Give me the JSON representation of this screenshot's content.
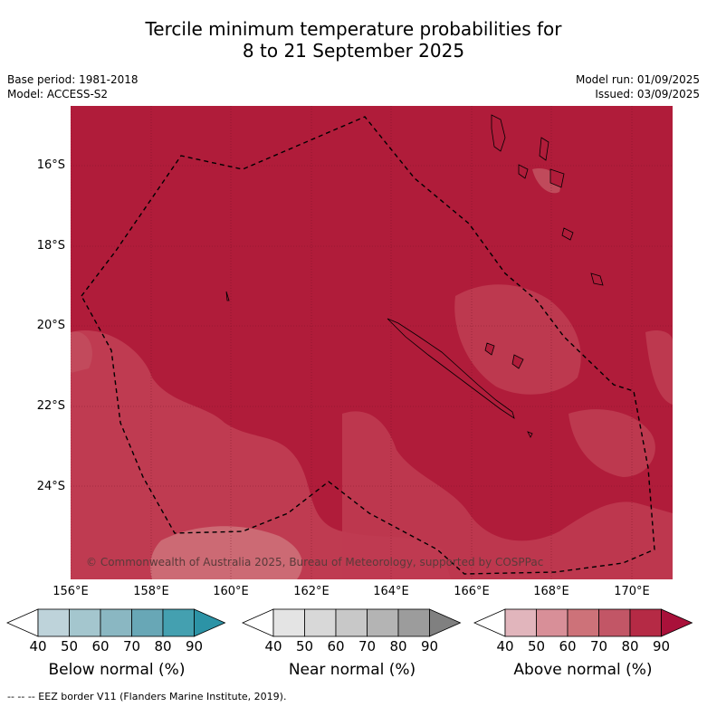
{
  "title": {
    "line1": "Tercile minimum temperature probabilities for",
    "line2": "8 to 21 September 2025"
  },
  "meta": {
    "base_period": "Base period: 1981-2018",
    "model": "Model: ACCESS-S2",
    "model_run": "Model run: 01/09/2025",
    "issued": "Issued: 03/09/2025"
  },
  "map": {
    "lat_labels": [
      "16°S",
      "18°S",
      "20°S",
      "22°S",
      "24°S"
    ],
    "lon_labels": [
      "156°E",
      "158°E",
      "160°E",
      "162°E",
      "164°E",
      "166°E",
      "168°E",
      "170°E"
    ],
    "credit": "© Commonwealth of Australia 2025, Bureau of Meteorology, supported by COSPPac",
    "background_color": "#b01c3a"
  },
  "colorbars": [
    {
      "label": "Below normal (%)",
      "ticks": [
        "40",
        "50",
        "60",
        "70",
        "80",
        "90"
      ],
      "colors": [
        "#ffffff",
        "#bed3da",
        "#a4c6ce",
        "#8ab7c2",
        "#68a7b6",
        "#44a0b0",
        "#2c93a6"
      ]
    },
    {
      "label": "Near normal (%)",
      "ticks": [
        "40",
        "50",
        "60",
        "70",
        "80",
        "90"
      ],
      "colors": [
        "#ffffff",
        "#e4e4e4",
        "#d8d8d8",
        "#c8c8c8",
        "#b4b4b4",
        "#9c9c9c",
        "#808080"
      ]
    },
    {
      "label": "Above normal (%)",
      "ticks": [
        "40",
        "50",
        "60",
        "70",
        "80",
        "90"
      ],
      "colors": [
        "#ffffff",
        "#e1b5bc",
        "#d88f98",
        "#cd7279",
        "#c25666",
        "#b52a45",
        "#a9113a"
      ]
    }
  ],
  "legend_footer": "--  --  -- EEZ border V11 (Flanders Marine Institute, 2019)."
}
